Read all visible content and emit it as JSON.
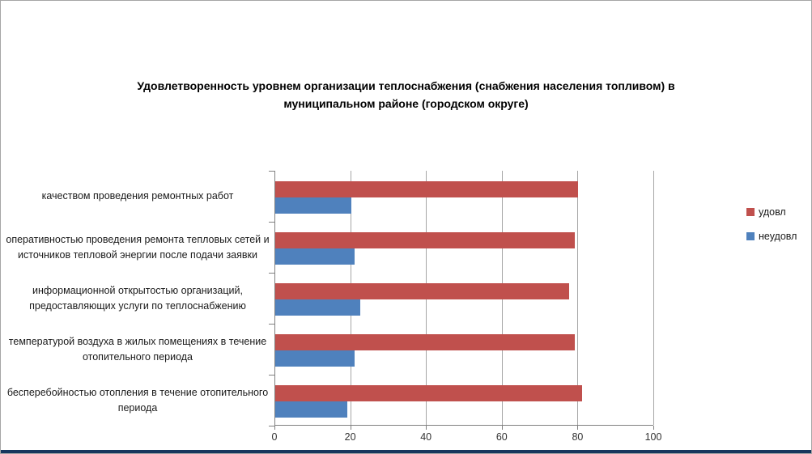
{
  "window": {
    "background": "#FFFFFF",
    "border_color": "#A6A6A6",
    "bottom_strip_color": "#17375E"
  },
  "chart_data": {
    "type": "bar",
    "orientation": "horizontal",
    "title": "Удовлетворенность уровнем организации теплоснабжения (снабжения населения топливом) в муниципальном районе (городском округе)",
    "categories": [
      "качеством проведения ремонтных работ",
      "оперативностью проведения ремонта тепловых сетей и источников тепловой энергии после подачи заявки",
      "информационной открытостью организаций, предоставляющих услуги по теплоснабжению",
      "температурой воздуха в жилых помещениях в течение отопительного периода",
      "бесперебойностью отопления в течение отопительного периода"
    ],
    "categories_order": "top-to-bottom",
    "series": [
      {
        "name": "удовл",
        "color": "#C0504D",
        "values": [
          80,
          79,
          77.5,
          79,
          81
        ]
      },
      {
        "name": "неудовл",
        "color": "#4F81BD",
        "values": [
          20,
          21,
          22.5,
          21,
          19
        ]
      }
    ],
    "xlabel": "",
    "ylabel": "",
    "xlim": [
      0,
      100
    ],
    "xticks": [
      0,
      20,
      40,
      60,
      80,
      100
    ],
    "grid": "vertical",
    "gridline_color": "#A6A6A6",
    "axis_color": "#808080",
    "text_color": "#1A1A1A",
    "legend_position": "right"
  }
}
